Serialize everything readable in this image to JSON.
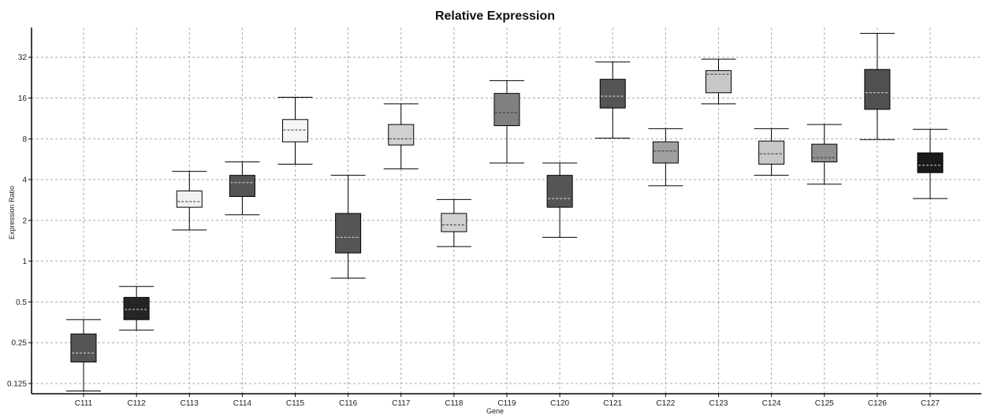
{
  "chart_data": {
    "type": "box",
    "title": "Relative Expression",
    "xlabel": "Gene",
    "ylabel": "Expression Ratio",
    "yscale": "log2",
    "ylim": [
      0.105,
      53
    ],
    "yticks": [
      0.125,
      0.25,
      0.5,
      1,
      2,
      4,
      8,
      16,
      32
    ],
    "ytick_labels": [
      "0.125",
      "0.25",
      "0.5",
      "1",
      "2",
      "4",
      "8",
      "16",
      "32"
    ],
    "grid": true,
    "categories": [
      "C111",
      "C112",
      "C113",
      "C114",
      "C115",
      "C116",
      "C117",
      "C118",
      "C119",
      "C120",
      "C121",
      "C122",
      "C123",
      "C124",
      "C125",
      "C126",
      "C127"
    ],
    "boxes": [
      {
        "category": "C111",
        "whisker_low": 0.11,
        "q1": 0.18,
        "median": 0.21,
        "q3": 0.29,
        "whisker_high": 0.37,
        "fill": "#555555"
      },
      {
        "category": "C112",
        "whisker_low": 0.31,
        "q1": 0.37,
        "median": 0.44,
        "q3": 0.54,
        "whisker_high": 0.65,
        "fill": "#252525"
      },
      {
        "category": "C113",
        "whisker_low": 1.7,
        "q1": 2.5,
        "median": 2.75,
        "q3": 3.3,
        "whisker_high": 4.6,
        "fill": "#f0f0f0"
      },
      {
        "category": "C114",
        "whisker_low": 2.2,
        "q1": 3.0,
        "median": 3.8,
        "q3": 4.3,
        "whisker_high": 5.4,
        "fill": "#555555"
      },
      {
        "category": "C115",
        "whisker_low": 5.2,
        "q1": 7.6,
        "median": 9.3,
        "q3": 11.1,
        "whisker_high": 16.2,
        "fill": "#f5f5f5"
      },
      {
        "category": "C116",
        "whisker_low": 0.75,
        "q1": 1.15,
        "median": 1.5,
        "q3": 2.25,
        "whisker_high": 4.3,
        "fill": "#555555"
      },
      {
        "category": "C117",
        "whisker_low": 4.8,
        "q1": 7.2,
        "median": 8.0,
        "q3": 10.2,
        "whisker_high": 14.5,
        "fill": "#d0d0d0"
      },
      {
        "category": "C118",
        "whisker_low": 1.28,
        "q1": 1.65,
        "median": 1.85,
        "q3": 2.25,
        "whisker_high": 2.85,
        "fill": "#d0d0d0"
      },
      {
        "category": "C119",
        "whisker_low": 5.3,
        "q1": 10.0,
        "median": 12.5,
        "q3": 17.3,
        "whisker_high": 21.5,
        "fill": "#808080"
      },
      {
        "category": "C120",
        "whisker_low": 1.5,
        "q1": 2.5,
        "median": 2.9,
        "q3": 4.3,
        "whisker_high": 5.3,
        "fill": "#555555"
      },
      {
        "category": "C121",
        "whisker_low": 8.1,
        "q1": 13.5,
        "median": 16.5,
        "q3": 22.0,
        "whisker_high": 29.5,
        "fill": "#555555"
      },
      {
        "category": "C122",
        "whisker_low": 3.6,
        "q1": 5.3,
        "median": 6.5,
        "q3": 7.6,
        "whisker_high": 9.5,
        "fill": "#a0a0a0"
      },
      {
        "category": "C123",
        "whisker_low": 14.5,
        "q1": 17.5,
        "median": 24.0,
        "q3": 25.5,
        "whisker_high": 31.0,
        "fill": "#c8c8c8"
      },
      {
        "category": "C124",
        "whisker_low": 4.3,
        "q1": 5.2,
        "median": 6.2,
        "q3": 7.7,
        "whisker_high": 9.5,
        "fill": "#c8c8c8"
      },
      {
        "category": "C125",
        "whisker_low": 3.7,
        "q1": 5.4,
        "median": 5.8,
        "q3": 7.3,
        "whisker_high": 10.2,
        "fill": "#909090"
      },
      {
        "category": "C126",
        "whisker_low": 7.9,
        "q1": 13.2,
        "median": 17.5,
        "q3": 26.0,
        "whisker_high": 48.0,
        "fill": "#505050"
      },
      {
        "category": "C127",
        "whisker_low": 2.9,
        "q1": 4.5,
        "median": 5.1,
        "q3": 6.3,
        "whisker_high": 9.4,
        "fill": "#1a1a1a"
      }
    ]
  }
}
